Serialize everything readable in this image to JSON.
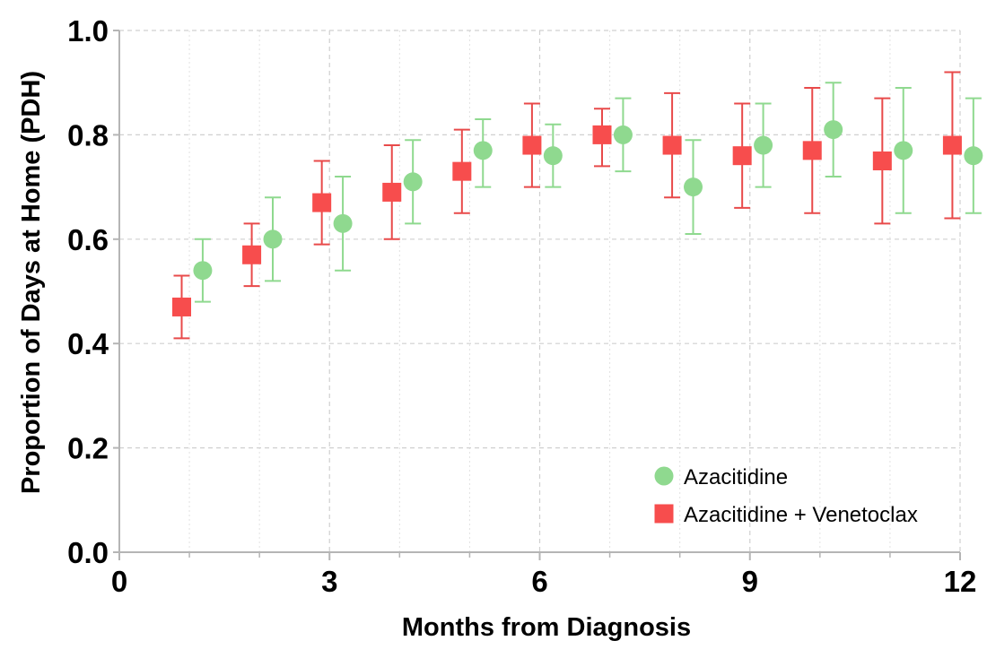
{
  "chart_data": {
    "type": "scatter",
    "title": "",
    "xlabel": "Months from Diagnosis",
    "ylabel": "Proportion of Days at  Home (PDH)",
    "xlim": [
      0,
      12
    ],
    "ylim": [
      0.0,
      1.0
    ],
    "x_ticks": [
      0,
      3,
      6,
      9,
      12
    ],
    "x_minor_ticks": [
      1,
      2,
      4,
      5,
      7,
      8,
      10,
      11
    ],
    "y_ticks": [
      0.0,
      0.2,
      0.4,
      0.6,
      0.8,
      1.0
    ],
    "x_tick_labels": [
      "0",
      "3",
      "6",
      "9",
      "12"
    ],
    "y_tick_labels": [
      "0.0",
      "0.2",
      "0.4",
      "0.6",
      "0.8",
      "1.0"
    ],
    "grid": true,
    "legend_position": "bottom-right",
    "series": [
      {
        "name": "Azacitidine",
        "marker": "circle",
        "color": "#8fd98f",
        "error_color": "#8fd98f",
        "x": [
          1,
          2,
          3,
          4,
          5,
          6,
          7,
          8,
          9,
          10,
          11,
          12
        ],
        "values": [
          0.54,
          0.6,
          0.63,
          0.71,
          0.77,
          0.76,
          0.8,
          0.7,
          0.78,
          0.81,
          0.77,
          0.76
        ],
        "lower": [
          0.48,
          0.52,
          0.54,
          0.63,
          0.7,
          0.7,
          0.73,
          0.61,
          0.7,
          0.72,
          0.65,
          0.65
        ],
        "upper": [
          0.6,
          0.68,
          0.72,
          0.79,
          0.83,
          0.82,
          0.87,
          0.79,
          0.86,
          0.9,
          0.89,
          0.87
        ]
      },
      {
        "name": "Azacitidine + Venetoclax",
        "marker": "square",
        "color": "#f74d4d",
        "error_color": "#e84a4a",
        "x": [
          1,
          2,
          3,
          4,
          5,
          6,
          7,
          8,
          9,
          10,
          11,
          12
        ],
        "values": [
          0.47,
          0.57,
          0.67,
          0.69,
          0.73,
          0.78,
          0.8,
          0.78,
          0.76,
          0.77,
          0.75,
          0.78
        ],
        "lower": [
          0.41,
          0.51,
          0.59,
          0.6,
          0.65,
          0.7,
          0.74,
          0.68,
          0.66,
          0.65,
          0.63,
          0.64
        ],
        "upper": [
          0.53,
          0.63,
          0.75,
          0.78,
          0.81,
          0.86,
          0.85,
          0.88,
          0.86,
          0.89,
          0.87,
          0.92
        ]
      }
    ]
  }
}
